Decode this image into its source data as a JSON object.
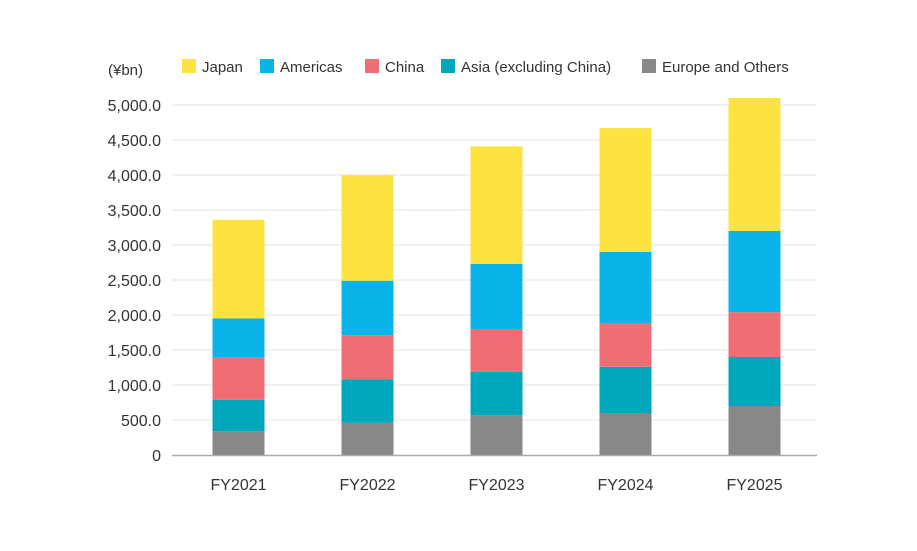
{
  "chart_data": {
    "type": "bar",
    "stacked": true,
    "unit_label": "(¥bn)",
    "categories": [
      "FY2021",
      "FY2022",
      "FY2023",
      "FY2024",
      "FY2025"
    ],
    "series": [
      {
        "name": "Europe and Others",
        "color": "#888888",
        "values": [
          340,
          460,
          570,
          600,
          700
        ]
      },
      {
        "name": "Asia (excluding China)",
        "color": "#00A6B9",
        "values": [
          450,
          620,
          620,
          660,
          700
        ]
      },
      {
        "name": "China",
        "color": "#EE6E73",
        "values": [
          600,
          630,
          610,
          620,
          640
        ]
      },
      {
        "name": "Americas",
        "color": "#0BB4E8",
        "values": [
          560,
          780,
          930,
          1020,
          1160
        ]
      },
      {
        "name": "Japan",
        "color": "#FDE33F",
        "values": [
          1410,
          1510,
          1680,
          1770,
          1900
        ]
      }
    ],
    "legend_order": [
      "Japan",
      "Americas",
      "China",
      "Asia (excluding China)",
      "Europe and Others"
    ],
    "yticks": [
      "0",
      "500.0",
      "1,000.0",
      "1,500.0",
      "2,000.0",
      "2,500.0",
      "3,000.0",
      "3,500.0",
      "4,000.0",
      "4,500.0",
      "5,000.0"
    ],
    "ylim": [
      0,
      5000
    ],
    "grid": true,
    "legend_position": "top"
  }
}
